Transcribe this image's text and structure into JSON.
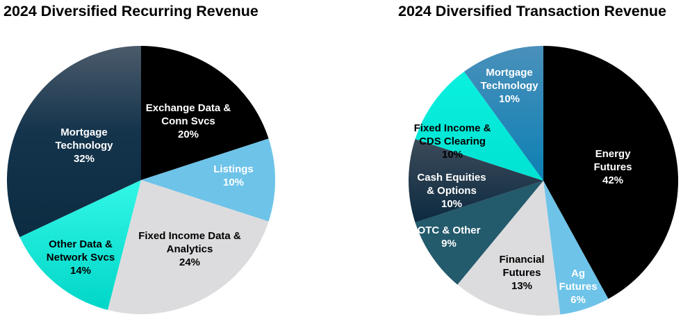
{
  "chart_data": [
    {
      "type": "pie",
      "title": "2024 Diversified Recurring Revenue",
      "slices": [
        {
          "label": [
            "Exchange Data &",
            "Conn Svcs"
          ],
          "value": 20,
          "value_label": "20%",
          "color": "#000000"
        },
        {
          "label": [
            "Listings"
          ],
          "value": 10,
          "value_label": "10%",
          "color": "#6ec3e8"
        },
        {
          "label": [
            "Fixed Income Data &",
            "Analytics"
          ],
          "value": 24,
          "value_label": "24%",
          "color": "#dcdcde"
        },
        {
          "label": [
            "Other Data &",
            "Network Svcs"
          ],
          "value": 14,
          "value_label": "14%",
          "color": "#1de9d9"
        },
        {
          "label": [
            "Mortgage",
            "Technology"
          ],
          "value": 32,
          "value_label": "32%",
          "color": "#123048"
        }
      ]
    },
    {
      "type": "pie",
      "title": "2024 Diversified Transaction Revenue",
      "slices": [
        {
          "label": [
            "Energy",
            "Futures"
          ],
          "value": 42,
          "value_label": "42%",
          "color": "#000000"
        },
        {
          "label": [
            "Ag",
            "Futures"
          ],
          "value": 6,
          "value_label": "6%",
          "color": "#6ec3e8"
        },
        {
          "label": [
            "Financial",
            "Futures"
          ],
          "value": 13,
          "value_label": "13%",
          "color": "#dcdcde"
        },
        {
          "label": [
            "OTC & Other"
          ],
          "value": 9,
          "value_label": "9%",
          "color": "#235a6c"
        },
        {
          "label": [
            "Cash Equities",
            "& Options"
          ],
          "value": 10,
          "value_label": "10%",
          "color": "#132c42"
        },
        {
          "label": [
            "Fixed Income &",
            "CDS Clearing"
          ],
          "value": 10,
          "value_label": "10%",
          "color": "#05e8d8"
        },
        {
          "label": [
            "Mortgage",
            "Technology"
          ],
          "value": 10,
          "value_label": "10%",
          "color": "#1a84b6"
        }
      ]
    }
  ]
}
